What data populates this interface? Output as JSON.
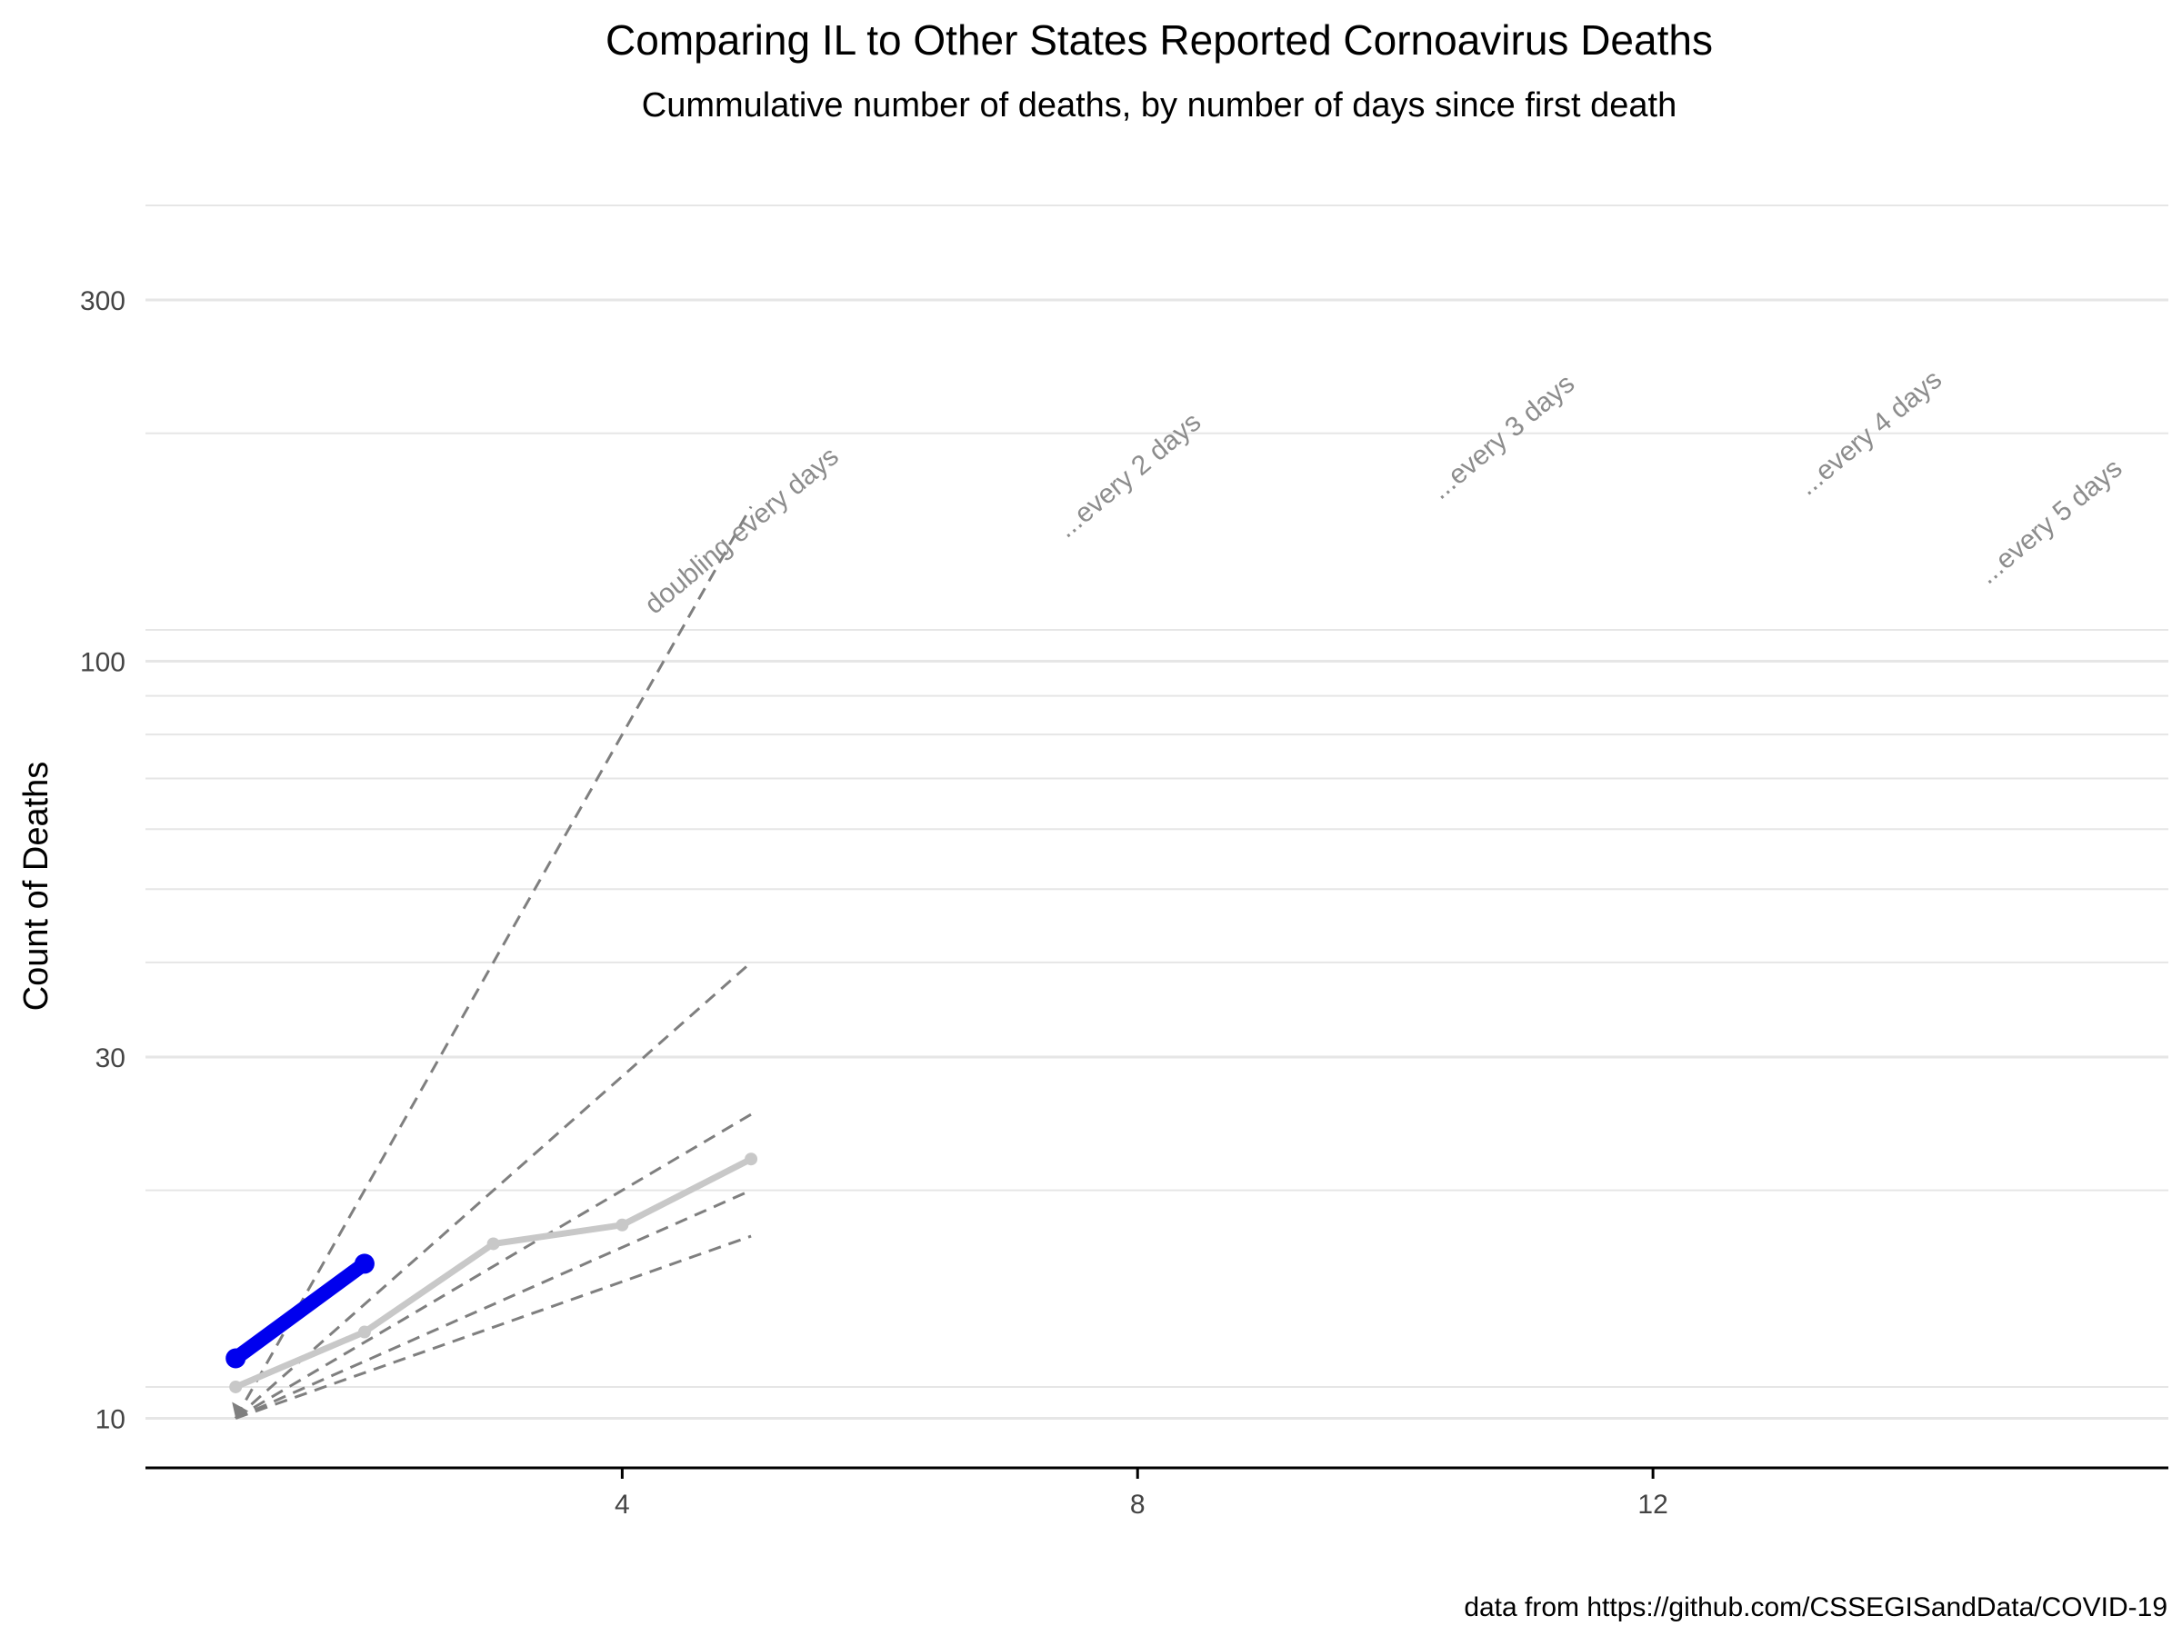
{
  "chart_data": {
    "type": "line",
    "title": "Comparing IL to Other States Reported Cornoavirus Deaths",
    "subtitle": "Cummulative number of deaths, by number of days since first death",
    "xlabel": "",
    "ylabel": "Count of Deaths",
    "caption": "data from https://github.com/CSSEGISandData/COVID-19",
    "x_scale": "linear",
    "y_scale": "log10",
    "xlim": [
      0.3,
      16
    ],
    "ylim": [
      8.6,
      480
    ],
    "x_ticks": [
      4,
      8,
      12
    ],
    "x_tick_labels": [
      "4",
      "8",
      "12"
    ],
    "y_ticks": [
      10,
      30,
      100,
      300
    ],
    "y_tick_labels": [
      "10",
      "30",
      "100",
      "300"
    ],
    "y_minor_grid": [
      11,
      20,
      40,
      50,
      60,
      70,
      80,
      90,
      110,
      200,
      400
    ],
    "grid": "horizontal",
    "legend": "none",
    "colors": {
      "highlight": "#0000ee",
      "other": "#c8c8c8",
      "reference": "#7f7f7f",
      "grid": "#e6e6e6",
      "axis": "#000000"
    },
    "series": [
      {
        "name": "",
        "role": "other",
        "x": [
          1,
          2,
          3,
          4,
          5
        ],
        "y": [
          11,
          13,
          17,
          18,
          22
        ]
      },
      {
        "name": "",
        "role": "highlight",
        "x": [
          1,
          2
        ],
        "y": [
          12,
          16
        ]
      }
    ],
    "reference_lines": [
      {
        "label": "doubling every days",
        "x": [
          1,
          5
        ],
        "y": [
          10,
          160
        ],
        "label_x": 4.25,
        "label_y": 115
      },
      {
        "label": "...every 2 days",
        "x": [
          1,
          5
        ],
        "y": [
          10,
          40
        ],
        "label_x": 7.45,
        "label_y": 145
      },
      {
        "label": "...every 3 days",
        "x": [
          1,
          5
        ],
        "y": [
          10,
          25.2
        ],
        "label_x": 10.35,
        "label_y": 163
      },
      {
        "label": "...every 4 days",
        "x": [
          1,
          5
        ],
        "y": [
          10,
          20
        ],
        "label_x": 13.2,
        "label_y": 165
      },
      {
        "label": "...every 5 days",
        "x": [
          1,
          5
        ],
        "y": [
          10,
          17.4
        ],
        "label_x": 14.6,
        "label_y": 126
      }
    ]
  }
}
